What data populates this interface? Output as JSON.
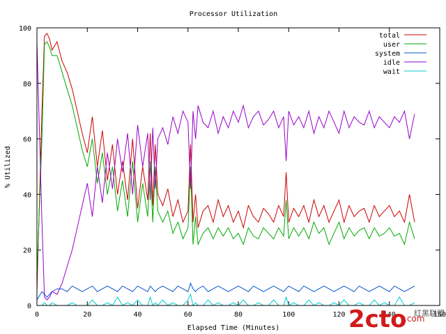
{
  "chart_data": {
    "type": "line",
    "title": "Processor Utilization",
    "xlabel": "Elapsed Time (Minutes)",
    "ylabel": "% Utilized",
    "xlim": [
      0,
      160
    ],
    "ylim": [
      0,
      100
    ],
    "x_ticks": [
      "0",
      "20",
      "40",
      "60",
      "80",
      "100",
      "120",
      "140",
      "160"
    ],
    "y_ticks": [
      "0",
      "20",
      "40",
      "60",
      "80",
      "100"
    ],
    "grid": false,
    "legend_position": "top-right",
    "x": [
      0,
      2,
      3,
      4,
      5,
      6,
      8,
      10,
      12,
      14,
      16,
      18,
      20,
      22,
      24,
      26,
      28,
      30,
      32,
      34,
      36,
      38,
      40,
      42,
      44,
      45,
      46,
      47,
      48,
      50,
      52,
      54,
      56,
      58,
      60,
      61,
      62,
      63,
      64,
      66,
      68,
      70,
      72,
      74,
      76,
      78,
      80,
      82,
      84,
      86,
      88,
      90,
      92,
      94,
      96,
      98,
      99,
      100,
      102,
      104,
      106,
      108,
      110,
      112,
      114,
      116,
      118,
      120,
      122,
      124,
      126,
      128,
      130,
      132,
      134,
      136,
      138,
      140,
      142,
      144,
      146,
      148,
      150
    ],
    "series": [
      {
        "name": "total",
        "color": "#cc0000",
        "values": [
          5,
          70,
          97,
          98,
          96,
          92,
          95,
          88,
          84,
          78,
          70,
          62,
          55,
          68,
          50,
          63,
          45,
          58,
          40,
          52,
          38,
          60,
          35,
          50,
          38,
          62,
          36,
          58,
          40,
          36,
          42,
          32,
          38,
          30,
          34,
          58,
          30,
          40,
          28,
          34,
          36,
          30,
          38,
          32,
          36,
          30,
          34,
          28,
          36,
          32,
          30,
          35,
          33,
          30,
          36,
          32,
          48,
          30,
          35,
          32,
          36,
          30,
          38,
          32,
          36,
          30,
          34,
          38,
          30,
          36,
          32,
          34,
          35,
          30,
          36,
          32,
          34,
          36,
          32,
          34,
          30,
          40,
          30
        ]
      },
      {
        "name": "user",
        "color": "#00aa00",
        "values": [
          10,
          60,
          94,
          95,
          93,
          90,
          90,
          84,
          78,
          72,
          64,
          56,
          50,
          60,
          44,
          55,
          40,
          50,
          34,
          45,
          32,
          52,
          30,
          44,
          32,
          52,
          30,
          50,
          34,
          30,
          34,
          26,
          30,
          24,
          28,
          50,
          22,
          32,
          22,
          26,
          28,
          24,
          28,
          25,
          28,
          24,
          26,
          22,
          28,
          25,
          24,
          28,
          26,
          24,
          28,
          25,
          38,
          24,
          28,
          25,
          28,
          24,
          30,
          26,
          28,
          22,
          26,
          30,
          24,
          28,
          25,
          27,
          28,
          24,
          28,
          25,
          26,
          28,
          25,
          26,
          22,
          30,
          24
        ]
      },
      {
        "name": "system",
        "color": "#0055cc",
        "values": [
          2,
          5,
          4,
          3,
          4,
          5,
          6,
          6,
          5,
          7,
          6,
          5,
          6,
          7,
          5,
          6,
          7,
          6,
          5,
          7,
          6,
          5,
          7,
          6,
          5,
          7,
          6,
          5,
          6,
          7,
          6,
          5,
          7,
          6,
          5,
          8,
          6,
          5,
          6,
          7,
          5,
          6,
          7,
          6,
          5,
          6,
          7,
          6,
          5,
          7,
          6,
          5,
          6,
          7,
          6,
          5,
          6,
          7,
          6,
          5,
          7,
          6,
          5,
          6,
          7,
          6,
          5,
          6,
          7,
          6,
          5,
          7,
          6,
          5,
          6,
          7,
          6,
          5,
          7,
          6,
          5,
          6,
          7
        ]
      },
      {
        "name": "idle",
        "color": "#9900cc",
        "values": [
          95,
          30,
          3,
          2,
          3,
          5,
          4,
          8,
          14,
          20,
          28,
          36,
          44,
          32,
          50,
          37,
          55,
          42,
          60,
          48,
          62,
          40,
          65,
          50,
          62,
          38,
          64,
          42,
          60,
          64,
          58,
          68,
          62,
          70,
          66,
          42,
          70,
          60,
          72,
          66,
          64,
          70,
          62,
          68,
          64,
          70,
          66,
          72,
          64,
          68,
          70,
          65,
          67,
          70,
          64,
          68,
          52,
          70,
          65,
          68,
          64,
          70,
          62,
          68,
          64,
          70,
          66,
          62,
          70,
          64,
          68,
          66,
          65,
          70,
          64,
          68,
          66,
          64,
          68,
          66,
          70,
          60,
          69
        ]
      },
      {
        "name": "wait",
        "color": "#00cccc",
        "values": [
          0,
          0,
          1,
          0,
          0,
          1,
          0,
          0,
          0,
          1,
          0,
          0,
          0,
          2,
          0,
          0,
          1,
          0,
          3,
          0,
          1,
          0,
          2,
          0,
          0,
          3,
          0,
          1,
          0,
          2,
          0,
          1,
          0,
          0,
          2,
          4,
          0,
          1,
          0,
          0,
          2,
          0,
          1,
          0,
          0,
          1,
          0,
          2,
          0,
          0,
          1,
          0,
          0,
          2,
          0,
          0,
          3,
          0,
          1,
          0,
          0,
          2,
          0,
          1,
          0,
          0,
          1,
          0,
          2,
          0,
          0,
          1,
          0,
          0,
          2,
          0,
          1,
          0,
          0,
          3,
          0,
          0,
          1
        ]
      }
    ]
  },
  "watermark": {
    "logo_text": "2cto",
    "logo_suffix": ".com",
    "caption": "红黑联盟"
  }
}
